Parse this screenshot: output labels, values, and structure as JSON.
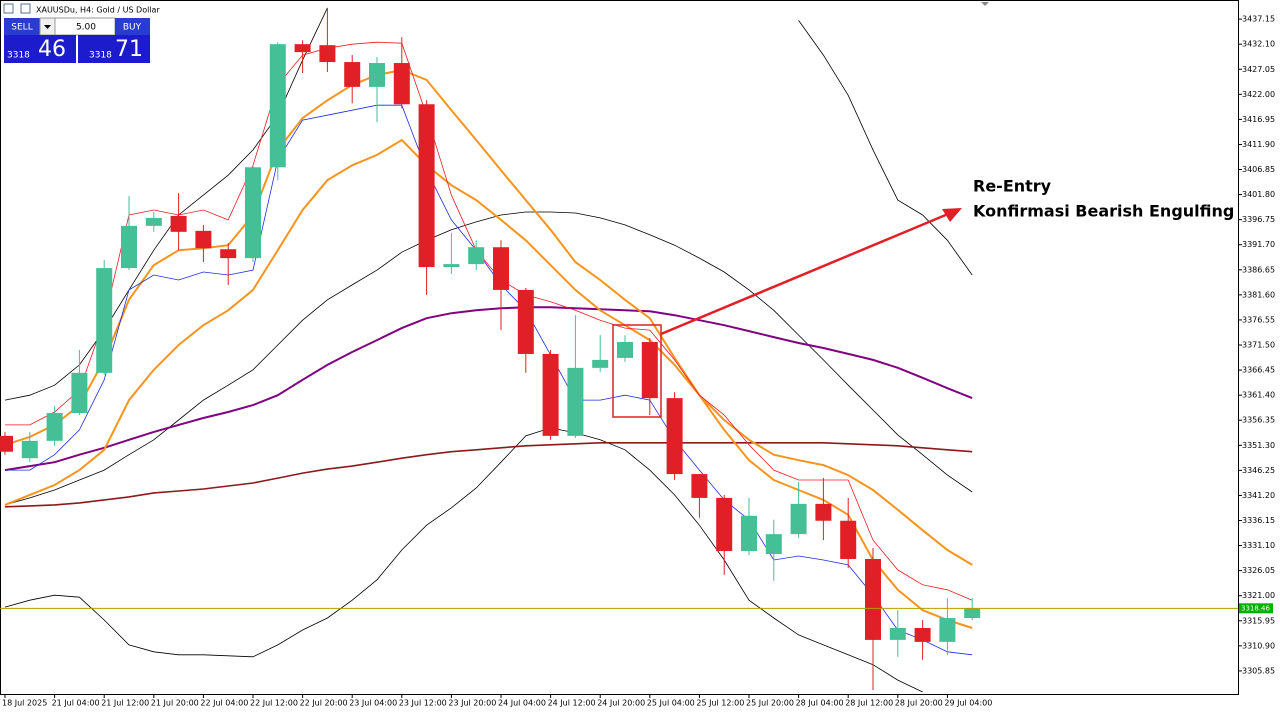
{
  "chart_data": {
    "type": "candlestick",
    "title": "XAUUSDu, H4:  Gold / US Dollar",
    "trade_panel": {
      "sell": "SELL",
      "lot": "5.00",
      "buy": "BUY",
      "bid_main": "3318",
      "bid_pips": "46",
      "ask_main": "3318",
      "ask_pips": "71"
    },
    "annotation": {
      "line1": "Re-Entry",
      "line2": "Konfirmasi Bearish Engulfing"
    },
    "categories": [
      "18 Jul 2025",
      null,
      "21 Jul 04:00",
      null,
      "21 Jul 12:00",
      null,
      "21 Jul 20:00",
      null,
      "22 Jul 04:00",
      null,
      "22 Jul 12:00",
      null,
      "22 Jul 20:00",
      null,
      "23 Jul 04:00",
      null,
      "23 Jul 12:00",
      null,
      "23 Jul 20:00",
      null,
      "24 Jul 04:00",
      null,
      "24 Jul 12:00",
      null,
      "24 Jul 20:00",
      null,
      "25 Jul 04:00",
      null,
      "25 Jul 12:00",
      null,
      "25 Jul 20:00",
      null,
      "28 Jul 04:00",
      null,
      "28 Jul 12:00",
      null,
      "28 Jul 20:00",
      null,
      "29 Jul 04:00",
      null
    ],
    "open": [
      3353.2,
      3348.7,
      3352.2,
      3357.8,
      3365.9,
      3387.0,
      3395.5,
      3397.5,
      3394.5,
      3390.8,
      3389.0,
      3407.3,
      3432.1,
      3431.9,
      3428.5,
      3423.5,
      3428.3,
      3420.0,
      3387.2,
      3387.8,
      3391.2,
      3382.6,
      3369.7,
      3353.2,
      3366.9,
      3368.9,
      3372.1,
      3360.8,
      3345.5,
      3340.7,
      3330.0,
      3329.4,
      3333.4,
      3339.5,
      3336.1,
      3328.4,
      3312.1,
      3314.5,
      3311.7,
      3316.5
    ],
    "high": [
      3354.0,
      3354.0,
      3359.2,
      3370.5,
      3388.6,
      3401.5,
      3398.3,
      3402.1,
      3395.7,
      3392.0,
      3407.7,
      3432.5,
      3432.9,
      3439.4,
      3429.9,
      3429.5,
      3433.5,
      3420.8,
      3394.1,
      3392.6,
      3392.6,
      3383.0,
      3370.5,
      3377.5,
      3373.5,
      3373.5,
      3372.9,
      3362.0,
      3345.5,
      3341.3,
      3340.7,
      3336.3,
      3343.9,
      3344.7,
      3340.7,
      3330.6,
      3318.1,
      3316.1,
      3320.5,
      3320.5
    ],
    "low": [
      3349.4,
      3347.9,
      3351.2,
      3357.4,
      3365.5,
      3386.6,
      3394.3,
      3390.6,
      3388.2,
      3383.6,
      3388.2,
      3404.7,
      3426.3,
      3426.5,
      3420.2,
      3416.4,
      3419.2,
      3381.6,
      3385.8,
      3386.6,
      3374.5,
      3365.9,
      3352.4,
      3352.8,
      3366.1,
      3368.1,
      3357.4,
      3344.3,
      3336.7,
      3325.2,
      3329.2,
      3324.0,
      3332.6,
      3332.2,
      3326.6,
      3302.0,
      3308.7,
      3308.1,
      3309.1,
      3316.1
    ],
    "close": [
      3350.0,
      3352.2,
      3357.8,
      3365.9,
      3387.0,
      3395.5,
      3397.1,
      3394.3,
      3391.0,
      3389.0,
      3407.3,
      3432.1,
      3430.5,
      3428.5,
      3423.5,
      3428.3,
      3420.0,
      3387.2,
      3387.8,
      3391.2,
      3382.6,
      3369.7,
      3353.2,
      3366.9,
      3368.5,
      3372.1,
      3360.8,
      3345.5,
      3340.7,
      3330.0,
      3337.1,
      3333.4,
      3339.5,
      3336.1,
      3328.4,
      3312.1,
      3314.5,
      3311.7,
      3316.5,
      3318.5
    ],
    "up_color": "#45bf96",
    "down_color": "#e11f26",
    "lines": [
      {
        "color": "#000000",
        "width": 0.8,
        "values": [
          3360.4,
          3361.4,
          3363.4,
          3367.5,
          3374.5,
          3382.6,
          3390.6,
          3397.7,
          3401.7,
          3405.7,
          3410.8,
          3417.8,
          3428.9,
          3439.4,
          null,
          null,
          null,
          null,
          null,
          null,
          null,
          null,
          null,
          null,
          null,
          null,
          null,
          null,
          null,
          null,
          null,
          null,
          3436.9,
          3429.9,
          3421.8,
          3410.8,
          3400.7,
          3397.7,
          3392.6,
          3385.6
        ]
      },
      {
        "color": "#000000",
        "width": 0.8,
        "values": [
          3339.3,
          3340.7,
          3342.3,
          3344.3,
          3346.3,
          3349.4,
          3352.4,
          3356.4,
          3360.4,
          3363.4,
          3366.5,
          3371.5,
          3376.5,
          3380.6,
          3383.6,
          3386.6,
          3390.2,
          3392.6,
          3394.7,
          3396.3,
          3397.7,
          3398.3,
          3398.3,
          3398.1,
          3397.1,
          3395.7,
          3393.7,
          3391.6,
          3389.0,
          3386.2,
          3382.6,
          3378.5,
          3373.5,
          3368.5,
          3363.4,
          3358.4,
          3353.4,
          3349.4,
          3345.3,
          3341.9
        ]
      },
      {
        "color": "#000000",
        "width": 0.8,
        "values": [
          3318.7,
          3320.1,
          3321.1,
          3320.7,
          3316.1,
          3311.1,
          3309.7,
          3309.1,
          3309.1,
          3308.9,
          3308.7,
          3311.1,
          3314.1,
          3316.5,
          3320.1,
          3324.2,
          3330.2,
          3335.2,
          3338.7,
          3342.7,
          3347.9,
          3353.2,
          3354.8,
          3353.8,
          3352.4,
          3350.4,
          3346.3,
          3341.3,
          3335.2,
          3328.2,
          3320.1,
          3316.5,
          3313.1,
          3311.1,
          3309.1,
          3307.1,
          3304.0,
          3301.6,
          null,
          null
        ]
      },
      {
        "color": "#800080",
        "width": 2,
        "values": [
          3346.3,
          3347.1,
          3347.9,
          3349.4,
          3350.8,
          3352.4,
          3354.0,
          3355.4,
          3356.8,
          3358.0,
          3359.4,
          3361.4,
          3364.5,
          3367.5,
          3370.1,
          3372.5,
          3374.9,
          3376.9,
          3377.9,
          3378.5,
          3378.9,
          3379.1,
          3379.1,
          3378.9,
          3378.7,
          3378.5,
          3378.3,
          3377.5,
          3376.5,
          3375.5,
          3374.3,
          3373.1,
          3371.9,
          3370.9,
          3369.7,
          3368.5,
          3366.9,
          3364.9,
          3362.8,
          3360.8
        ]
      },
      {
        "color": "#8b1a1a",
        "width": 1.6,
        "values": [
          3338.9,
          3339.1,
          3339.3,
          3339.7,
          3340.3,
          3340.9,
          3341.7,
          3342.1,
          3342.5,
          3343.1,
          3343.7,
          3344.7,
          3345.7,
          3346.5,
          3347.1,
          3347.9,
          3348.7,
          3349.4,
          3350.0,
          3350.4,
          3350.8,
          3351.2,
          3351.4,
          3351.6,
          3351.8,
          3351.8,
          3351.8,
          3351.8,
          3351.8,
          3351.8,
          3351.8,
          3351.8,
          3351.8,
          3351.8,
          3351.6,
          3351.4,
          3351.2,
          3350.8,
          3350.4,
          3350.0
        ]
      },
      {
        "color": "#f7941d",
        "width": 2,
        "values": [
          3339.3,
          3341.3,
          3343.3,
          3346.3,
          3350.4,
          3360.4,
          3366.5,
          3371.5,
          3375.5,
          3378.5,
          3382.6,
          3390.6,
          3398.7,
          3404.7,
          3407.7,
          3409.8,
          3412.8,
          3407.7,
          3403.7,
          3400.7,
          3396.7,
          3392.6,
          3387.6,
          3382.6,
          3378.5,
          3375.5,
          3372.5,
          3367.5,
          3361.4,
          3356.4,
          3352.4,
          3349.4,
          3348.3,
          3347.3,
          3345.3,
          3342.3,
          3338.3,
          3334.2,
          3330.2,
          3327.2
        ]
      },
      {
        "color": "#f7941d",
        "width": 2,
        "values": [
          3351.4,
          3353.0,
          3355.4,
          3359.4,
          3368.5,
          3380.6,
          3387.6,
          3390.6,
          3391.0,
          3391.6,
          3397.7,
          3410.8,
          3417.2,
          3420.8,
          3423.9,
          3425.9,
          3426.9,
          3424.9,
          3418.8,
          3412.8,
          3406.7,
          3400.7,
          3394.7,
          3388.2,
          3384.6,
          3380.6,
          3376.9,
          3368.9,
          3361.4,
          3354.4,
          3348.3,
          3344.3,
          3342.3,
          3340.3,
          3337.3,
          3328.2,
          3322.2,
          3318.1,
          3316.1,
          3314.5
        ]
      },
      {
        "color": "#ee1c24",
        "width": 0.8,
        "values": [
          3355.4,
          3355.4,
          3358.0,
          3362.4,
          3376.5,
          3397.7,
          3398.7,
          3397.7,
          3398.7,
          3396.7,
          3407.7,
          3423.9,
          3429.9,
          3431.3,
          3432.1,
          3432.5,
          3432.3,
          3417.8,
          3401.7,
          3390.6,
          3384.6,
          3381.6,
          3380.2,
          3378.5,
          3376.5,
          3374.9,
          3374.5,
          3368.5,
          3361.4,
          3357.4,
          3351.4,
          3346.3,
          3344.3,
          3344.3,
          3344.3,
          3332.2,
          3326.2,
          3323.2,
          3322.2,
          3320.1
        ]
      },
      {
        "color": "#1c2fe0",
        "width": 0.8,
        "values": [
          3346.3,
          3346.3,
          3349.4,
          3354.4,
          3364.5,
          3382.6,
          3385.6,
          3384.6,
          3386.2,
          3385.6,
          3386.6,
          3408.8,
          3416.8,
          3417.8,
          3418.8,
          3419.8,
          3419.8,
          3406.7,
          3396.7,
          3390.6,
          3383.6,
          3378.5,
          3369.5,
          3360.4,
          3360.4,
          3361.4,
          3360.4,
          3352.4,
          3346.3,
          3340.3,
          3336.3,
          3328.2,
          3329.0,
          3328.2,
          3327.2,
          3321.1,
          3314.1,
          3312.1,
          3309.7,
          3309.1
        ]
      }
    ],
    "current_price": 3318.46,
    "current_price_color": "#b59b00",
    "ylim": [
      3301.2,
      3441.0
    ],
    "yticks": [
      3437.15,
      {
        "value": 3432.1,
        "label": "3432.10"
      },
      3427.05,
      {
        "value": 3422.0,
        "label": "3422.00"
      },
      3416.95,
      {
        "value": 3411.9,
        "label": "3411.90"
      },
      3406.85,
      {
        "value": 3401.8,
        "label": "3401.80"
      },
      3396.75,
      {
        "value": 3391.7,
        "label": "3391.70"
      },
      3386.65,
      {
        "value": 3381.6,
        "label": "3381.60"
      },
      3376.55,
      {
        "value": 3371.5,
        "label": "3371.50"
      },
      3366.45,
      {
        "value": 3361.4,
        "label": "3361.40"
      },
      3356.35,
      {
        "value": 3351.3,
        "label": "3351.30"
      },
      3346.25,
      {
        "value": 3341.2,
        "label": "3341.20"
      },
      3336.15,
      {
        "value": 3331.1,
        "label": "3331.10"
      },
      3326.05,
      {
        "value": 3321.0,
        "label": "3321.00"
      },
      3315.95,
      {
        "value": 3310.9,
        "label": "3310.90"
      },
      3305.85
    ],
    "grid": false
  }
}
